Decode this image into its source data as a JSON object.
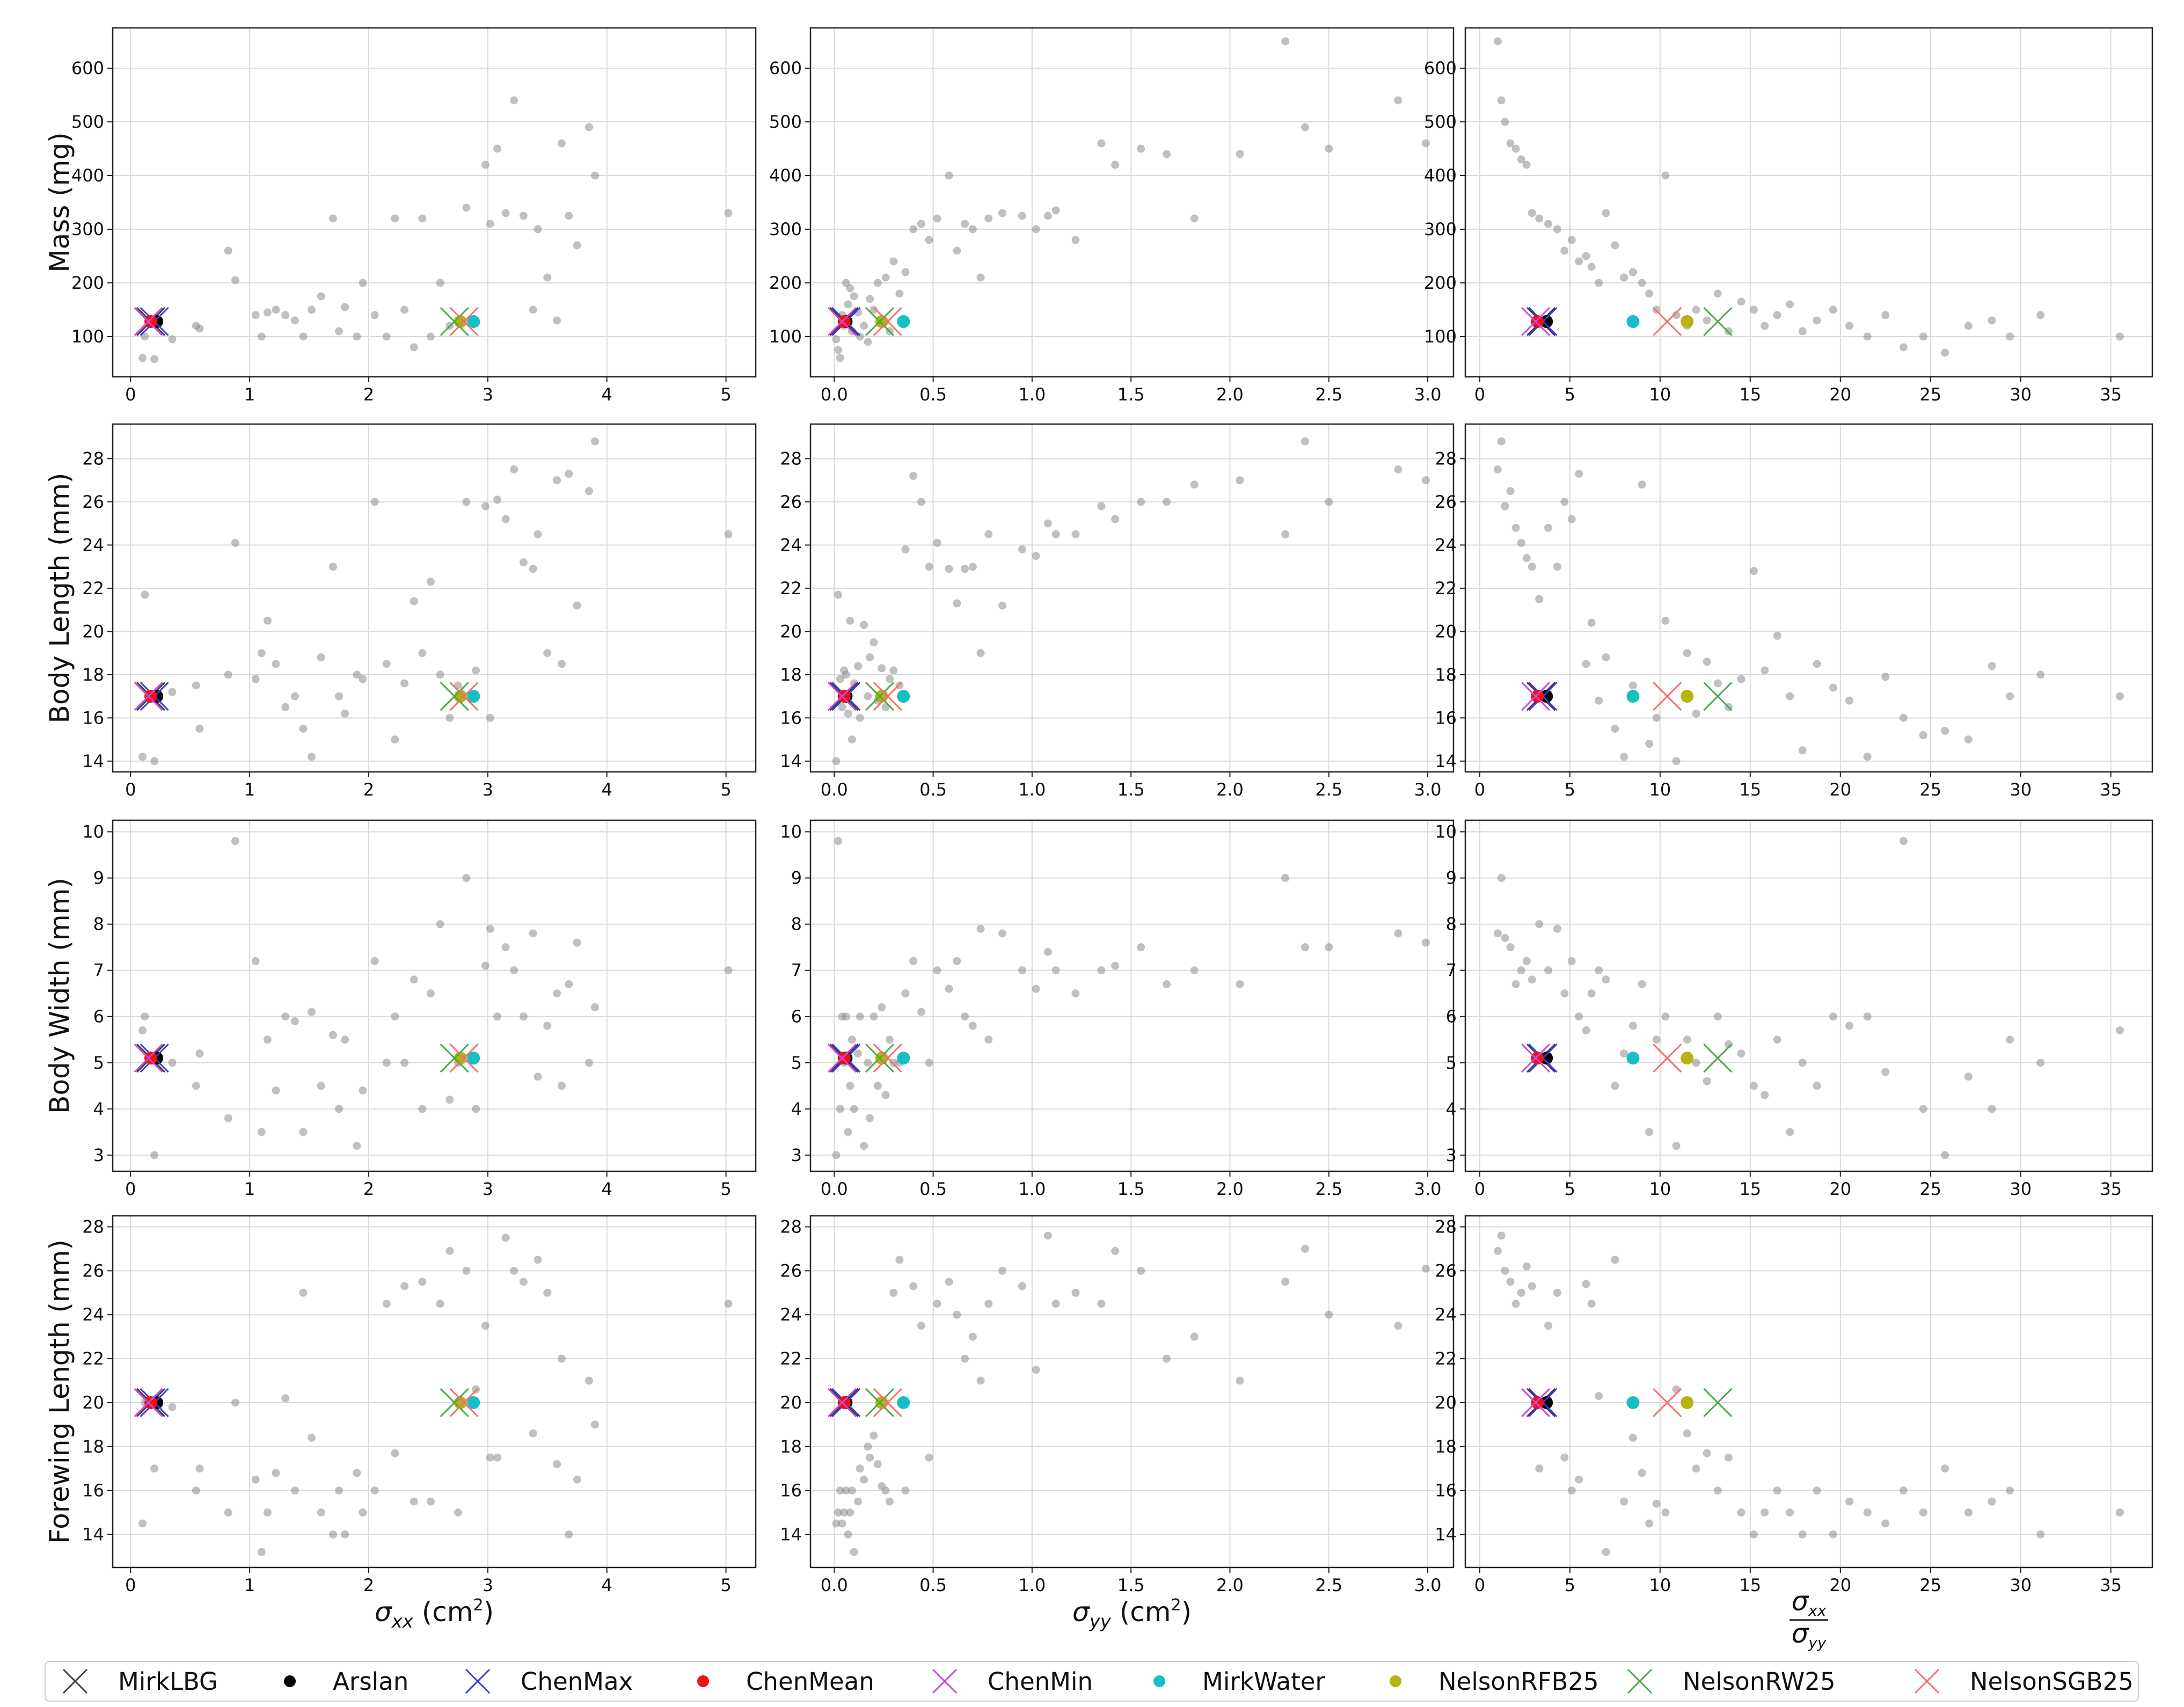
{
  "chart_data": {
    "type": "scatter",
    "layout": "4 rows x 3 columns grid",
    "grid": true,
    "legend_placement": "bottom",
    "columns": [
      {
        "key": "sxx",
        "xlabel": "σ_xx (cm²)",
        "xlabel_parts": {
          "sym": "σ",
          "sub": "xx",
          "unit_pre": " (cm",
          "unit_sup": "2",
          "unit_post": ")"
        },
        "xlim": [
          -0.15,
          5.25
        ],
        "xticks": [
          0,
          1,
          2,
          3,
          4,
          5
        ],
        "xtick_labels": [
          "0",
          "1",
          "2",
          "3",
          "4",
          "5"
        ]
      },
      {
        "key": "syy",
        "xlabel": "σ_yy (cm²)",
        "xlabel_parts": {
          "sym": "σ",
          "sub": "yy",
          "unit_pre": " (cm",
          "unit_sup": "2",
          "unit_post": ")"
        },
        "xlim": [
          -0.12,
          3.13
        ],
        "xticks": [
          0,
          0.5,
          1,
          1.5,
          2,
          2.5,
          3
        ],
        "xtick_labels": [
          "0.0",
          "0.5",
          "1.0",
          "1.5",
          "2.0",
          "2.5",
          "3.0"
        ]
      },
      {
        "key": "ratio",
        "xlabel": "σ_xx / σ_yy",
        "xlabel_parts": {
          "num": "σ",
          "num_sub": "xx",
          "den": "σ",
          "den_sub": "yy"
        },
        "xlim": [
          -0.8,
          37.3
        ],
        "xticks": [
          0,
          5,
          10,
          15,
          20,
          25,
          30,
          35
        ],
        "xtick_labels": [
          "0",
          "5",
          "10",
          "15",
          "20",
          "25",
          "30",
          "35"
        ]
      }
    ],
    "rows": [
      {
        "key": "mass",
        "ylabel": "Mass (mg)",
        "ylim": [
          25,
          675
        ],
        "yticks": [
          100,
          200,
          300,
          400,
          500,
          600
        ],
        "ytick_labels": [
          "100",
          "200",
          "300",
          "400",
          "500",
          "600"
        ],
        "ref_y": 128
      },
      {
        "key": "length",
        "ylabel": "Body Length (mm)",
        "ylim": [
          13.5,
          29.6
        ],
        "yticks": [
          14,
          16,
          18,
          20,
          22,
          24,
          26,
          28
        ],
        "ytick_labels": [
          "14",
          "16",
          "18",
          "20",
          "22",
          "24",
          "26",
          "28"
        ],
        "ref_y": 17
      },
      {
        "key": "width",
        "ylabel": "Body Width (mm)",
        "ylim": [
          2.65,
          10.25
        ],
        "yticks": [
          3,
          4,
          5,
          6,
          7,
          8,
          9,
          10
        ],
        "ytick_labels": [
          "3",
          "4",
          "5",
          "6",
          "7",
          "8",
          "9",
          "10"
        ],
        "ref_y": 5.1
      },
      {
        "key": "forewing",
        "ylabel": "Forewing Length (mm)",
        "ylim": [
          12.5,
          28.5
        ],
        "yticks": [
          14,
          16,
          18,
          20,
          22,
          24,
          26,
          28
        ],
        "ytick_labels": [
          "14",
          "16",
          "18",
          "20",
          "22",
          "24",
          "26",
          "28"
        ],
        "ref_y": 20
      }
    ],
    "reference_models": [
      {
        "name": "MirkLBG",
        "marker": "x",
        "color": "#404040",
        "sxx": 0.17,
        "syy": 0.05,
        "ratio": 3.4
      },
      {
        "name": "Arslan",
        "marker": "o",
        "color": "#000000",
        "sxx": 0.22,
        "syy": 0.06,
        "ratio": 3.7
      },
      {
        "name": "ChenMax",
        "marker": "x",
        "color": "#3b3bd9",
        "sxx": 0.2,
        "syy": 0.06,
        "ratio": 3.5
      },
      {
        "name": "ChenMean",
        "marker": "o",
        "color": "#ee1111",
        "sxx": 0.17,
        "syy": 0.05,
        "ratio": 3.2
      },
      {
        "name": "ChenMin",
        "marker": "x",
        "color": "#c64ad9",
        "sxx": 0.15,
        "syy": 0.04,
        "ratio": 3.1
      },
      {
        "name": "MirkWater",
        "marker": "o",
        "color": "#17bfc4",
        "sxx": 2.88,
        "syy": 0.35,
        "ratio": 8.5
      },
      {
        "name": "NelsonRFB25",
        "marker": "o",
        "color": "#b5b50e",
        "sxx": 2.77,
        "syy": 0.24,
        "ratio": 11.5
      },
      {
        "name": "NelsonRW25",
        "marker": "x",
        "color": "#4aa84a",
        "sxx": 2.72,
        "syy": 0.23,
        "ratio": 13.2
      },
      {
        "name": "NelsonSGB25",
        "marker": "x",
        "color": "#f07070",
        "sxx": 2.8,
        "syy": 0.27,
        "ratio": 10.4
      }
    ],
    "specimens": {
      "sxx": [
        0.1,
        0.12,
        0.2,
        0.35,
        0.55,
        0.58,
        0.82,
        0.88,
        1.05,
        1.1,
        1.15,
        1.22,
        1.3,
        1.38,
        1.45,
        1.52,
        1.6,
        1.7,
        1.75,
        1.8,
        1.9,
        1.95,
        2.05,
        2.15,
        2.22,
        2.3,
        2.38,
        2.45,
        2.52,
        2.6,
        2.68,
        2.75,
        2.82,
        2.9,
        2.98,
        3.02,
        3.08,
        3.15,
        3.22,
        3.3,
        3.38,
        3.42,
        3.5,
        3.58,
        3.62,
        3.68,
        3.75,
        3.85,
        3.9,
        5.02
      ],
      "syy": [
        0.01,
        0.02,
        0.03,
        0.04,
        0.05,
        0.06,
        0.07,
        0.08,
        0.09,
        0.1,
        0.12,
        0.13,
        0.15,
        0.17,
        0.18,
        0.2,
        0.22,
        0.24,
        0.26,
        0.28,
        0.3,
        0.33,
        0.36,
        0.4,
        0.44,
        0.48,
        0.52,
        0.58,
        0.62,
        0.66,
        0.7,
        0.74,
        0.78,
        0.85,
        0.95,
        1.02,
        1.08,
        1.12,
        1.22,
        1.35,
        1.42,
        1.55,
        1.68,
        1.82,
        2.05,
        2.28,
        2.38,
        2.5,
        2.85,
        2.99
      ],
      "ratio": [
        1.0,
        1.2,
        1.4,
        1.7,
        2.0,
        2.3,
        2.6,
        2.9,
        3.3,
        3.8,
        4.3,
        4.7,
        5.1,
        5.5,
        5.9,
        6.2,
        6.6,
        7.0,
        7.5,
        8.0,
        8.5,
        9.0,
        9.4,
        9.8,
        10.3,
        10.9,
        11.5,
        12.0,
        12.6,
        13.2,
        13.8,
        14.5,
        15.2,
        15.8,
        16.5,
        17.2,
        17.9,
        18.7,
        19.6,
        20.5,
        21.5,
        22.5,
        23.5,
        24.6,
        25.8,
        27.1,
        28.4,
        29.4,
        31.1,
        35.5
      ],
      "mass": {
        "sxx": [
          60,
          100,
          58,
          95,
          120,
          115,
          260,
          205,
          140,
          100,
          145,
          150,
          140,
          130,
          100,
          150,
          175,
          320,
          110,
          155,
          100,
          200,
          140,
          100,
          320,
          150,
          80,
          320,
          100,
          200,
          120,
          130,
          340,
          125,
          420,
          310,
          450,
          330,
          540,
          325,
          150,
          300,
          210,
          130,
          460,
          325,
          270,
          490,
          400,
          330
        ],
        "syy": [
          95,
          75,
          60,
          140,
          120,
          200,
          160,
          190,
          110,
          175,
          145,
          100,
          120,
          90,
          170,
          150,
          200,
          130,
          210,
          110,
          240,
          180,
          220,
          300,
          310,
          280,
          320,
          400,
          260,
          310,
          300,
          210,
          320,
          330,
          325,
          300,
          325,
          335,
          280,
          460,
          420,
          450,
          440,
          320,
          440,
          650,
          490,
          450,
          540,
          460
        ],
        "ratio": [
          650,
          540,
          500,
          460,
          450,
          430,
          420,
          330,
          320,
          310,
          300,
          260,
          280,
          240,
          250,
          230,
          200,
          330,
          270,
          210,
          220,
          200,
          180,
          150,
          400,
          140,
          120,
          150,
          130,
          180,
          110,
          165,
          150,
          120,
          140,
          160,
          110,
          130,
          150,
          120,
          100,
          140,
          80,
          100,
          70,
          120,
          130,
          100,
          140,
          100
        ]
      },
      "length": {
        "sxx": [
          14.2,
          21.7,
          14.0,
          17.2,
          17.5,
          15.5,
          18.0,
          24.1,
          17.8,
          19.0,
          20.5,
          18.5,
          16.5,
          17.0,
          15.5,
          14.2,
          18.8,
          23.0,
          17.0,
          16.2,
          18.0,
          17.8,
          26.0,
          18.5,
          15.0,
          17.6,
          21.4,
          19.0,
          22.3,
          18.0,
          16.0,
          17.5,
          26.0,
          18.2,
          25.8,
          16.0,
          26.1,
          25.2,
          27.5,
          23.2,
          22.9,
          24.5,
          19.0,
          27.0,
          18.5,
          27.3,
          21.2,
          26.5,
          28.8,
          24.5
        ],
        "syy": [
          14.0,
          21.7,
          17.8,
          16.5,
          18.2,
          18.0,
          16.2,
          20.5,
          15.0,
          17.6,
          18.4,
          16.0,
          20.3,
          17.0,
          18.8,
          19.5,
          16.8,
          18.3,
          16.5,
          17.8,
          18.2,
          17.5,
          23.8,
          27.2,
          26.0,
          23.0,
          24.1,
          22.9,
          21.3,
          22.9,
          23.0,
          19.0,
          24.5,
          21.2,
          23.8,
          23.5,
          25.0,
          24.5,
          24.5,
          25.8,
          25.2,
          26.0,
          26.0,
          26.8,
          27.0,
          24.5,
          28.8,
          26.0,
          27.5,
          27.0
        ],
        "ratio": [
          27.5,
          28.8,
          25.8,
          26.5,
          24.8,
          24.1,
          23.4,
          23.0,
          21.5,
          24.8,
          23.0,
          26.0,
          25.2,
          27.3,
          18.5,
          20.4,
          16.8,
          18.8,
          15.5,
          14.2,
          17.5,
          26.8,
          14.8,
          16.0,
          20.5,
          14.0,
          19.0,
          16.2,
          18.6,
          17.6,
          16.5,
          17.8,
          22.8,
          18.2,
          19.8,
          17.0,
          14.5,
          18.5,
          17.4,
          16.8,
          14.2,
          17.9,
          16.0,
          15.2,
          15.4,
          15.0,
          18.4,
          17.0,
          18.0,
          17.0
        ]
      },
      "width": {
        "sxx": [
          5.7,
          6.0,
          3.0,
          5.0,
          4.5,
          5.2,
          3.8,
          9.8,
          7.2,
          3.5,
          5.5,
          4.4,
          6.0,
          5.9,
          3.5,
          6.1,
          4.5,
          5.6,
          4.0,
          5.5,
          3.2,
          4.4,
          7.2,
          5.0,
          6.0,
          5.0,
          6.8,
          4.0,
          6.5,
          8.0,
          4.2,
          5.0,
          9.0,
          4.0,
          7.1,
          7.9,
          6.0,
          7.5,
          7.0,
          6.0,
          7.8,
          4.7,
          5.8,
          6.5,
          4.5,
          6.7,
          7.6,
          5.0,
          6.2,
          7.0
        ],
        "syy": [
          3.0,
          9.8,
          4.0,
          6.0,
          5.0,
          6.0,
          3.5,
          4.5,
          5.5,
          4.0,
          5.2,
          6.0,
          3.2,
          5.0,
          3.8,
          6.0,
          4.5,
          6.2,
          4.3,
          5.5,
          5.0,
          5.0,
          6.5,
          7.2,
          6.1,
          5.0,
          7.0,
          6.6,
          7.2,
          6.0,
          5.8,
          7.9,
          5.5,
          7.8,
          7.0,
          6.6,
          7.4,
          7.0,
          6.5,
          7.0,
          7.1,
          7.5,
          6.7,
          7.0,
          6.7,
          9.0,
          7.5,
          7.5,
          7.8,
          7.6
        ],
        "ratio": [
          7.8,
          9.0,
          7.7,
          7.5,
          6.7,
          7.0,
          7.2,
          6.8,
          8.0,
          7.0,
          7.9,
          6.5,
          7.2,
          6.0,
          5.7,
          6.5,
          7.0,
          6.8,
          4.5,
          5.2,
          5.8,
          6.7,
          3.5,
          5.5,
          6.0,
          3.2,
          5.5,
          5.0,
          4.6,
          6.0,
          5.4,
          5.2,
          4.5,
          4.3,
          5.5,
          3.5,
          5.0,
          4.5,
          6.0,
          5.8,
          6.0,
          4.8,
          9.8,
          4.0,
          3.0,
          4.7,
          4.0,
          5.5,
          5.0,
          5.7
        ]
      },
      "forewing": {
        "sxx": [
          14.5,
          20.0,
          17.0,
          19.8,
          16.0,
          17.0,
          15.0,
          20.0,
          16.5,
          13.2,
          15.0,
          16.8,
          20.2,
          16.0,
          25.0,
          18.4,
          15.0,
          14.0,
          16.0,
          14.0,
          16.8,
          15.0,
          16.0,
          24.5,
          17.7,
          25.3,
          15.5,
          25.5,
          15.5,
          24.5,
          26.9,
          15.0,
          26.0,
          20.6,
          23.5,
          17.5,
          17.5,
          27.5,
          26.0,
          25.5,
          18.6,
          26.5,
          25.0,
          17.2,
          22.0,
          14.0,
          16.5,
          21.0,
          19.0,
          24.5
        ],
        "syy": [
          14.5,
          15.0,
          16.0,
          14.5,
          15.0,
          16.0,
          14.0,
          15.0,
          16.0,
          13.2,
          15.5,
          17.0,
          16.5,
          18.0,
          17.5,
          18.5,
          17.2,
          16.2,
          16.0,
          15.5,
          25.0,
          26.5,
          16.0,
          25.3,
          23.5,
          17.5,
          24.5,
          25.5,
          24.0,
          22.0,
          23.0,
          21.0,
          24.5,
          26.0,
          25.3,
          21.5,
          27.6,
          24.5,
          25.0,
          24.5,
          26.9,
          26.0,
          22.0,
          23.0,
          21.0,
          25.5,
          27.0,
          24.0,
          23.5,
          26.1
        ],
        "ratio": [
          26.9,
          27.6,
          26.0,
          25.5,
          24.5,
          25.0,
          26.2,
          25.3,
          17.0,
          23.5,
          25.0,
          17.5,
          16.0,
          16.5,
          25.4,
          24.5,
          20.3,
          13.2,
          26.5,
          15.5,
          18.4,
          16.8,
          14.5,
          15.4,
          15.0,
          20.6,
          18.6,
          17.0,
          17.7,
          16.0,
          17.5,
          15.0,
          14.0,
          15.0,
          16.0,
          15.0,
          14.0,
          16.0,
          14.0,
          15.5,
          15.0,
          14.5,
          16.0,
          15.0,
          17.0,
          15.0,
          15.5,
          16.0,
          14.0,
          15.0
        ]
      }
    }
  }
}
